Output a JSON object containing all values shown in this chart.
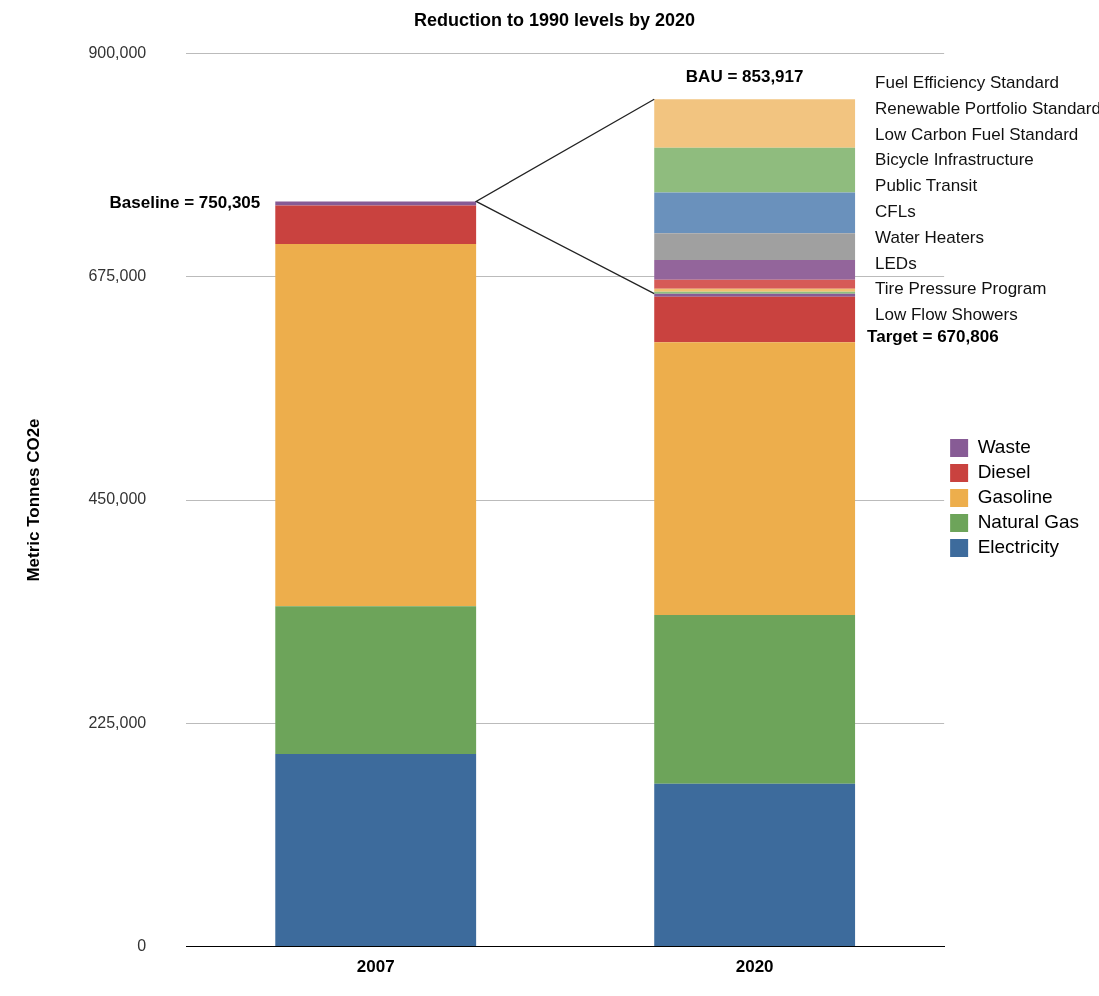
{
  "chart_data": {
    "type": "bar",
    "stacked": true,
    "title": "Reduction to 1990 levels by 2020",
    "ylabel": "Metric Tonnes CO2e",
    "categories": [
      "2007",
      "2020"
    ],
    "series": [
      {
        "name": "Electricity",
        "color": "#3d6b9c",
        "values": [
          194000,
          164000
        ]
      },
      {
        "name": "Natural Gas",
        "color": "#6da45a",
        "values": [
          149000,
          170000
        ]
      },
      {
        "name": "Gasoline",
        "color": "#edae4c",
        "values": [
          365000,
          275000
        ]
      },
      {
        "name": "Diesel",
        "color": "#c9423f",
        "values": [
          39000,
          46000
        ]
      },
      {
        "name": "Waste",
        "color": "#875b95",
        "values": [
          4000,
          3000
        ]
      },
      {
        "color": "#8fbf7f",
        "values": [
          null,
          2000
        ]
      },
      {
        "color": "#f0c070",
        "values": [
          null,
          3000
        ]
      },
      {
        "color": "#d65a57",
        "values": [
          null,
          9000
        ]
      },
      {
        "color": "#93659b",
        "values": [
          null,
          20000
        ]
      },
      {
        "color": "#a0a0a0",
        "values": [
          null,
          27000
        ]
      },
      {
        "color": "#6a91bc",
        "values": [
          null,
          41000
        ]
      },
      {
        "color": "#8fbc7e",
        "values": [
          null,
          45000
        ]
      },
      {
        "color": "#f2c480",
        "values": [
          null,
          49000
        ]
      }
    ],
    "ylim": [
      0,
      900000
    ],
    "yticks": [
      {
        "value": 0,
        "label": "0"
      },
      {
        "value": 225000,
        "label": "225,000"
      },
      {
        "value": 450000,
        "label": "450,000"
      },
      {
        "value": 675000,
        "label": "675,000"
      },
      {
        "value": 900000,
        "label": "900,000"
      }
    ],
    "grid": "y",
    "legend": "right",
    "annotations": [
      "Baseline = 750,305",
      "BAU = 853,917",
      "Target = 670,806",
      "Fuel Efficiency Standard",
      "Renewable Portfolio Standard",
      "Low Carbon Fuel Standard",
      "Bicycle Infrastructure",
      "Public Transit",
      "CFLs",
      "Water Heaters",
      "LEDs",
      "Tire Pressure Program",
      "Low Flow Showers"
    ]
  }
}
